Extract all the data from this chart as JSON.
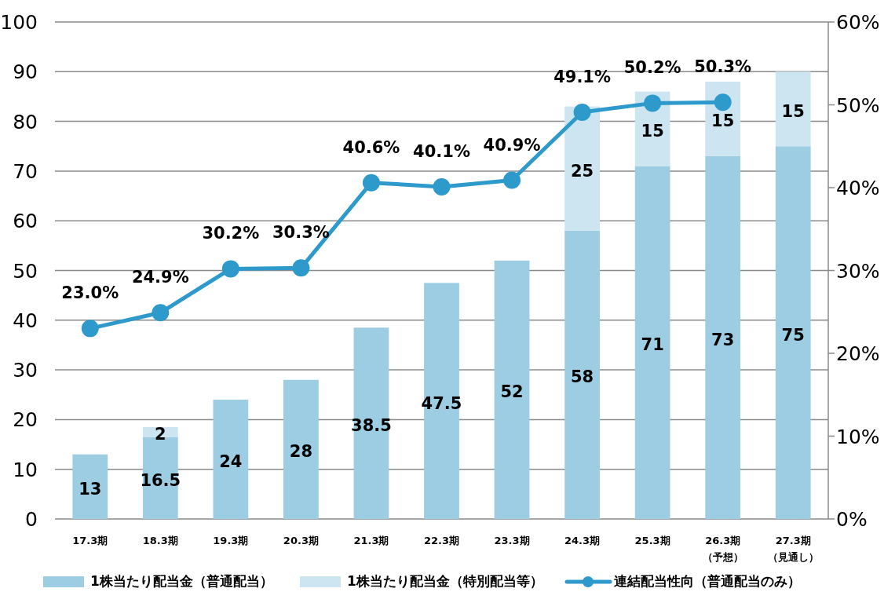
{
  "chart_data": {
    "type": "bar",
    "stacked": true,
    "categories": [
      "17.3期",
      "18.3期",
      "19.3期",
      "20.3期",
      "21.3期",
      "22.3期",
      "23.3期",
      "24.3期",
      "25.3期",
      "26.3期（予想）",
      "27.3期（見通し）"
    ],
    "series": [
      {
        "name": "1株当たり配当金（普通配当）",
        "color": "#9ccde3",
        "values": [
          13,
          16.5,
          24,
          28,
          38.5,
          47.5,
          52,
          58,
          71,
          73,
          75
        ],
        "value_labels": [
          "13",
          "16.5",
          "24",
          "28",
          "38.5",
          "47.5",
          "52",
          "58",
          "71",
          "73",
          "75"
        ]
      },
      {
        "name": "1株当たり配当金（特別配当等）",
        "color": "#cce5f0",
        "values": [
          null,
          2,
          null,
          null,
          null,
          null,
          null,
          25,
          15,
          15,
          15
        ],
        "value_labels": [
          null,
          "2",
          null,
          null,
          null,
          null,
          null,
          "25",
          "15",
          "15",
          "15"
        ]
      },
      {
        "name": "連結配当性向（普通配当のみ）",
        "type": "line",
        "axis": "y2",
        "color": "#2e9acb",
        "marker": "circle",
        "values": [
          23.0,
          24.9,
          30.2,
          30.3,
          40.6,
          40.1,
          40.9,
          49.1,
          50.2,
          50.3,
          null
        ],
        "value_labels": [
          "23.0%",
          "24.9%",
          "30.2%",
          "30.3%",
          "40.6%",
          "40.1%",
          "40.9%",
          "49.1%",
          "50.2%",
          "50.3%",
          null
        ]
      }
    ],
    "ylim": [
      0,
      100
    ],
    "yticks": [
      0,
      10,
      20,
      30,
      40,
      50,
      60,
      70,
      80,
      90,
      100
    ],
    "y2lim": [
      0,
      60
    ],
    "y2ticks": [
      {
        "value": 0,
        "label": "0%"
      },
      {
        "value": 10,
        "label": "10%"
      },
      {
        "value": 20,
        "label": "20%"
      },
      {
        "value": 30,
        "label": "30%"
      },
      {
        "value": 40,
        "label": "40%"
      },
      {
        "value": 50,
        "label": "50%"
      },
      {
        "value": 60,
        "label": "60%"
      }
    ],
    "grid": "y",
    "legend": "bottom"
  }
}
